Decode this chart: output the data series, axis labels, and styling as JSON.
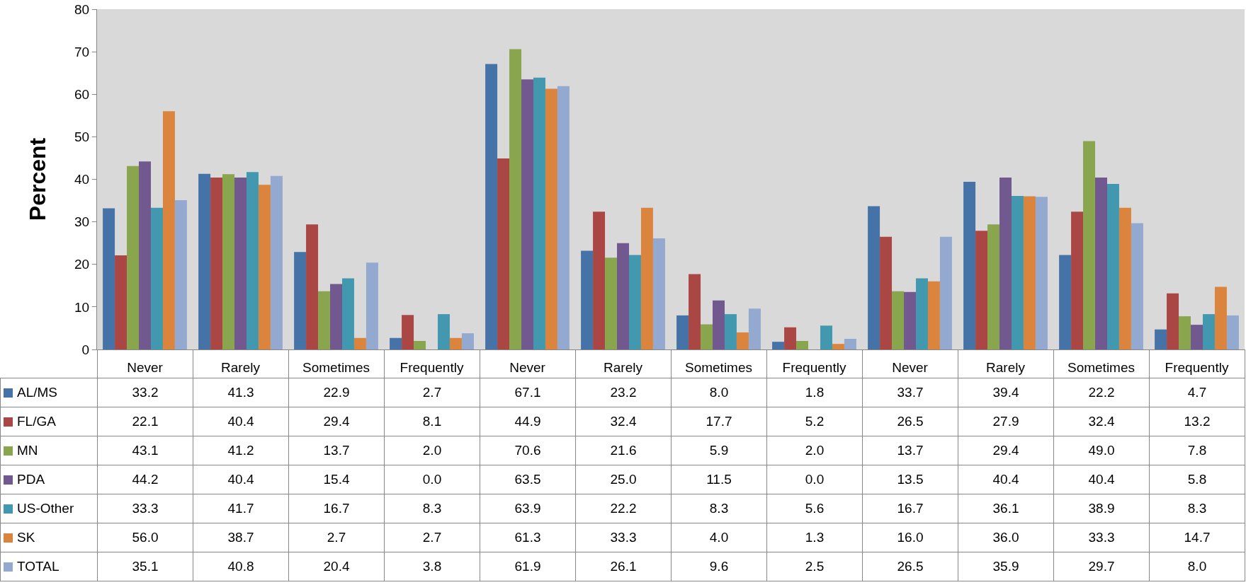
{
  "chart_data": {
    "type": "bar",
    "ylabel": "Percent",
    "categories": [
      "Never",
      "Rarely",
      "Sometimes",
      "Frequently",
      "Never",
      "Rarely",
      "Sometimes",
      "Frequently",
      "Never",
      "Rarely",
      "Sometimes",
      "Frequently"
    ],
    "ylim": [
      0,
      80
    ],
    "yticks": [
      0,
      10,
      20,
      30,
      40,
      50,
      60,
      70,
      80
    ],
    "grid": false,
    "legend": "bottom",
    "series": [
      {
        "name": "AL/MS",
        "color": "#4572a7",
        "values": [
          33.2,
          41.3,
          22.9,
          2.7,
          67.1,
          23.2,
          8.0,
          1.8,
          33.7,
          39.4,
          22.2,
          4.7
        ],
        "value_labels": [
          "33.2",
          "41.3",
          "22.9",
          "2.7",
          "67.1",
          "23.2",
          "8.0",
          "1.8",
          "33.7",
          "39.4",
          "22.2",
          "4.7"
        ]
      },
      {
        "name": "FL/GA",
        "color": "#aa4643",
        "values": [
          22.1,
          40.4,
          29.4,
          8.1,
          44.9,
          32.4,
          17.7,
          5.2,
          26.5,
          27.9,
          32.4,
          13.2
        ],
        "value_labels": [
          "22.1",
          "40.4",
          "29.4",
          "8.1",
          "44.9",
          "32.4",
          "17.7",
          "5.2",
          "26.5",
          "27.9",
          "32.4",
          "13.2"
        ]
      },
      {
        "name": "MN",
        "color": "#89a54e",
        "values": [
          43.1,
          41.2,
          13.7,
          2.0,
          70.6,
          21.6,
          5.9,
          2.0,
          13.7,
          29.4,
          49.0,
          7.8
        ],
        "value_labels": [
          "43.1",
          "41.2",
          "13.7",
          "2.0",
          "70.6",
          "21.6",
          "5.9",
          "2.0",
          "13.7",
          "29.4",
          "49.0",
          "7.8"
        ]
      },
      {
        "name": "PDA",
        "color": "#71588f",
        "values": [
          44.2,
          40.4,
          15.4,
          0.0,
          63.5,
          25.0,
          11.5,
          0.0,
          13.5,
          40.4,
          40.4,
          5.8
        ],
        "value_labels": [
          "44.2",
          "40.4",
          "15.4",
          "0.0",
          "63.5",
          "25.0",
          "11.5",
          "0.0",
          "13.5",
          "40.4",
          "40.4",
          "5.8"
        ]
      },
      {
        "name": "US-Other",
        "color": "#4198af",
        "values": [
          33.3,
          41.7,
          16.7,
          8.3,
          63.9,
          22.2,
          8.3,
          5.6,
          16.7,
          36.1,
          38.9,
          8.3
        ],
        "value_labels": [
          "33.3",
          "41.7",
          "16.7",
          "8.3",
          "63.9",
          "22.2",
          "8.3",
          "5.6",
          "16.7",
          "36.1",
          "38.9",
          "8.3"
        ]
      },
      {
        "name": "SK",
        "color": "#db843d",
        "values": [
          56.0,
          38.7,
          2.7,
          2.7,
          61.3,
          33.3,
          4.0,
          1.3,
          16.0,
          36.0,
          33.3,
          14.7
        ],
        "value_labels": [
          "56.0",
          "38.7",
          "2.7",
          "2.7",
          "61.3",
          "33.3",
          "4.0",
          "1.3",
          "16.0",
          "36.0",
          "33.3",
          "14.7"
        ]
      },
      {
        "name": "TOTAL",
        "color": "#93a9cf",
        "values": [
          35.1,
          40.8,
          20.4,
          3.8,
          61.9,
          26.1,
          9.6,
          2.5,
          26.5,
          35.9,
          29.7,
          8.0
        ],
        "value_labels": [
          "35.1",
          "40.8",
          "20.4",
          "3.8",
          "61.9",
          "26.1",
          "9.6",
          "2.5",
          "26.5",
          "35.9",
          "29.7",
          "8.0"
        ]
      }
    ]
  }
}
